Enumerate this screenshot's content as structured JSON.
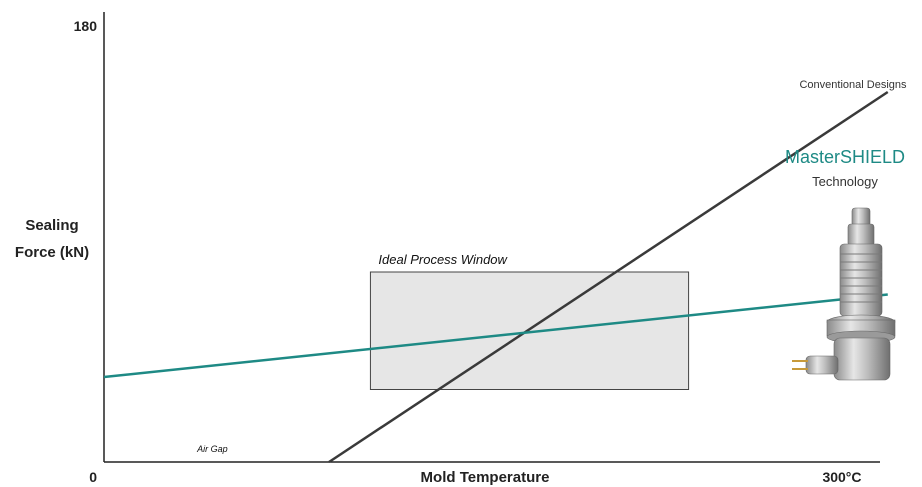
{
  "chart_data": {
    "type": "line",
    "xlabel": "Mold Temperature",
    "ylabel": [
      "Sealing",
      "Force (kN)"
    ],
    "x_tick_min": "0",
    "x_tick_max": "300°C",
    "y_tick_max": "180",
    "xlim": [
      0,
      300
    ],
    "ylim": [
      0,
      180
    ],
    "series": [
      {
        "name": "Conventional Designs",
        "color": "#3a3a3a",
        "x": [
          87,
          303
        ],
        "y": [
          0,
          148
        ]
      },
      {
        "name": "MasterSHIELD",
        "name_sub": "Technology",
        "color": "#1e8a85",
        "x": [
          0,
          303
        ],
        "y": [
          34,
          67
        ]
      }
    ],
    "region": {
      "label": "Ideal Process Window",
      "x": [
        103,
        226
      ],
      "y": [
        29,
        76
      ],
      "fill": "#e6e6e6"
    },
    "annotations": [
      {
        "text": "Air Gap",
        "x": 36,
        "y": 4
      }
    ],
    "product_image": "mastershield-nozzle-icon"
  }
}
